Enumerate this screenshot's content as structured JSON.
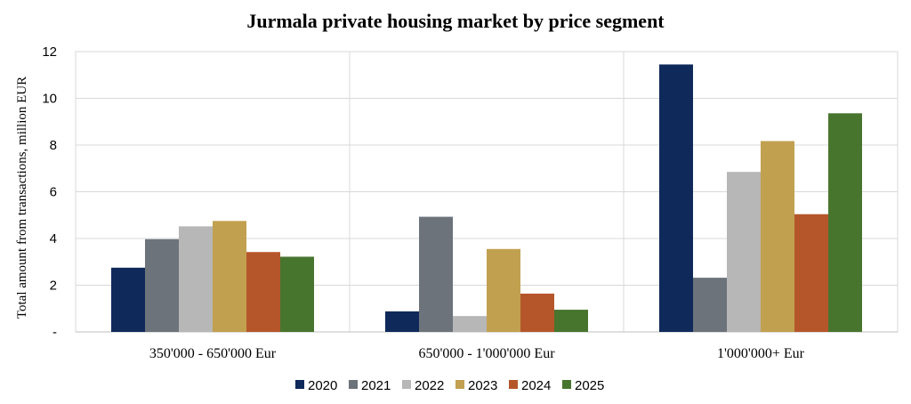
{
  "chart_data": {
    "type": "bar",
    "title": "Jurmala private housing market by price segment",
    "xlabel": "",
    "ylabel": "Total amount from transactions, million EUR",
    "ylim": [
      0,
      12
    ],
    "yticks": [
      0,
      2,
      4,
      6,
      8,
      10,
      12
    ],
    "ytick_labels": [
      "-",
      "2",
      "4",
      "6",
      "8",
      "10",
      "12"
    ],
    "categories": [
      "350'000 - 650'000 Eur",
      "650'000 - 1'000'000 Eur",
      "1'000'000+ Eur"
    ],
    "series": [
      {
        "name": "2020",
        "color": "#0f2a5a",
        "values": [
          2.75,
          0.88,
          11.45
        ]
      },
      {
        "name": "2021",
        "color": "#6c737a",
        "values": [
          3.97,
          4.93,
          2.32
        ]
      },
      {
        "name": "2022",
        "color": "#b7b7b7",
        "values": [
          4.52,
          0.68,
          6.85
        ]
      },
      {
        "name": "2023",
        "color": "#c1a050",
        "values": [
          4.75,
          3.55,
          8.17
        ]
      },
      {
        "name": "2024",
        "color": "#b5562a",
        "values": [
          3.42,
          1.64,
          5.04
        ]
      },
      {
        "name": "2025",
        "color": "#48752e",
        "values": [
          3.22,
          0.95,
          9.36
        ]
      }
    ],
    "grid": true,
    "legend_position": "bottom"
  }
}
